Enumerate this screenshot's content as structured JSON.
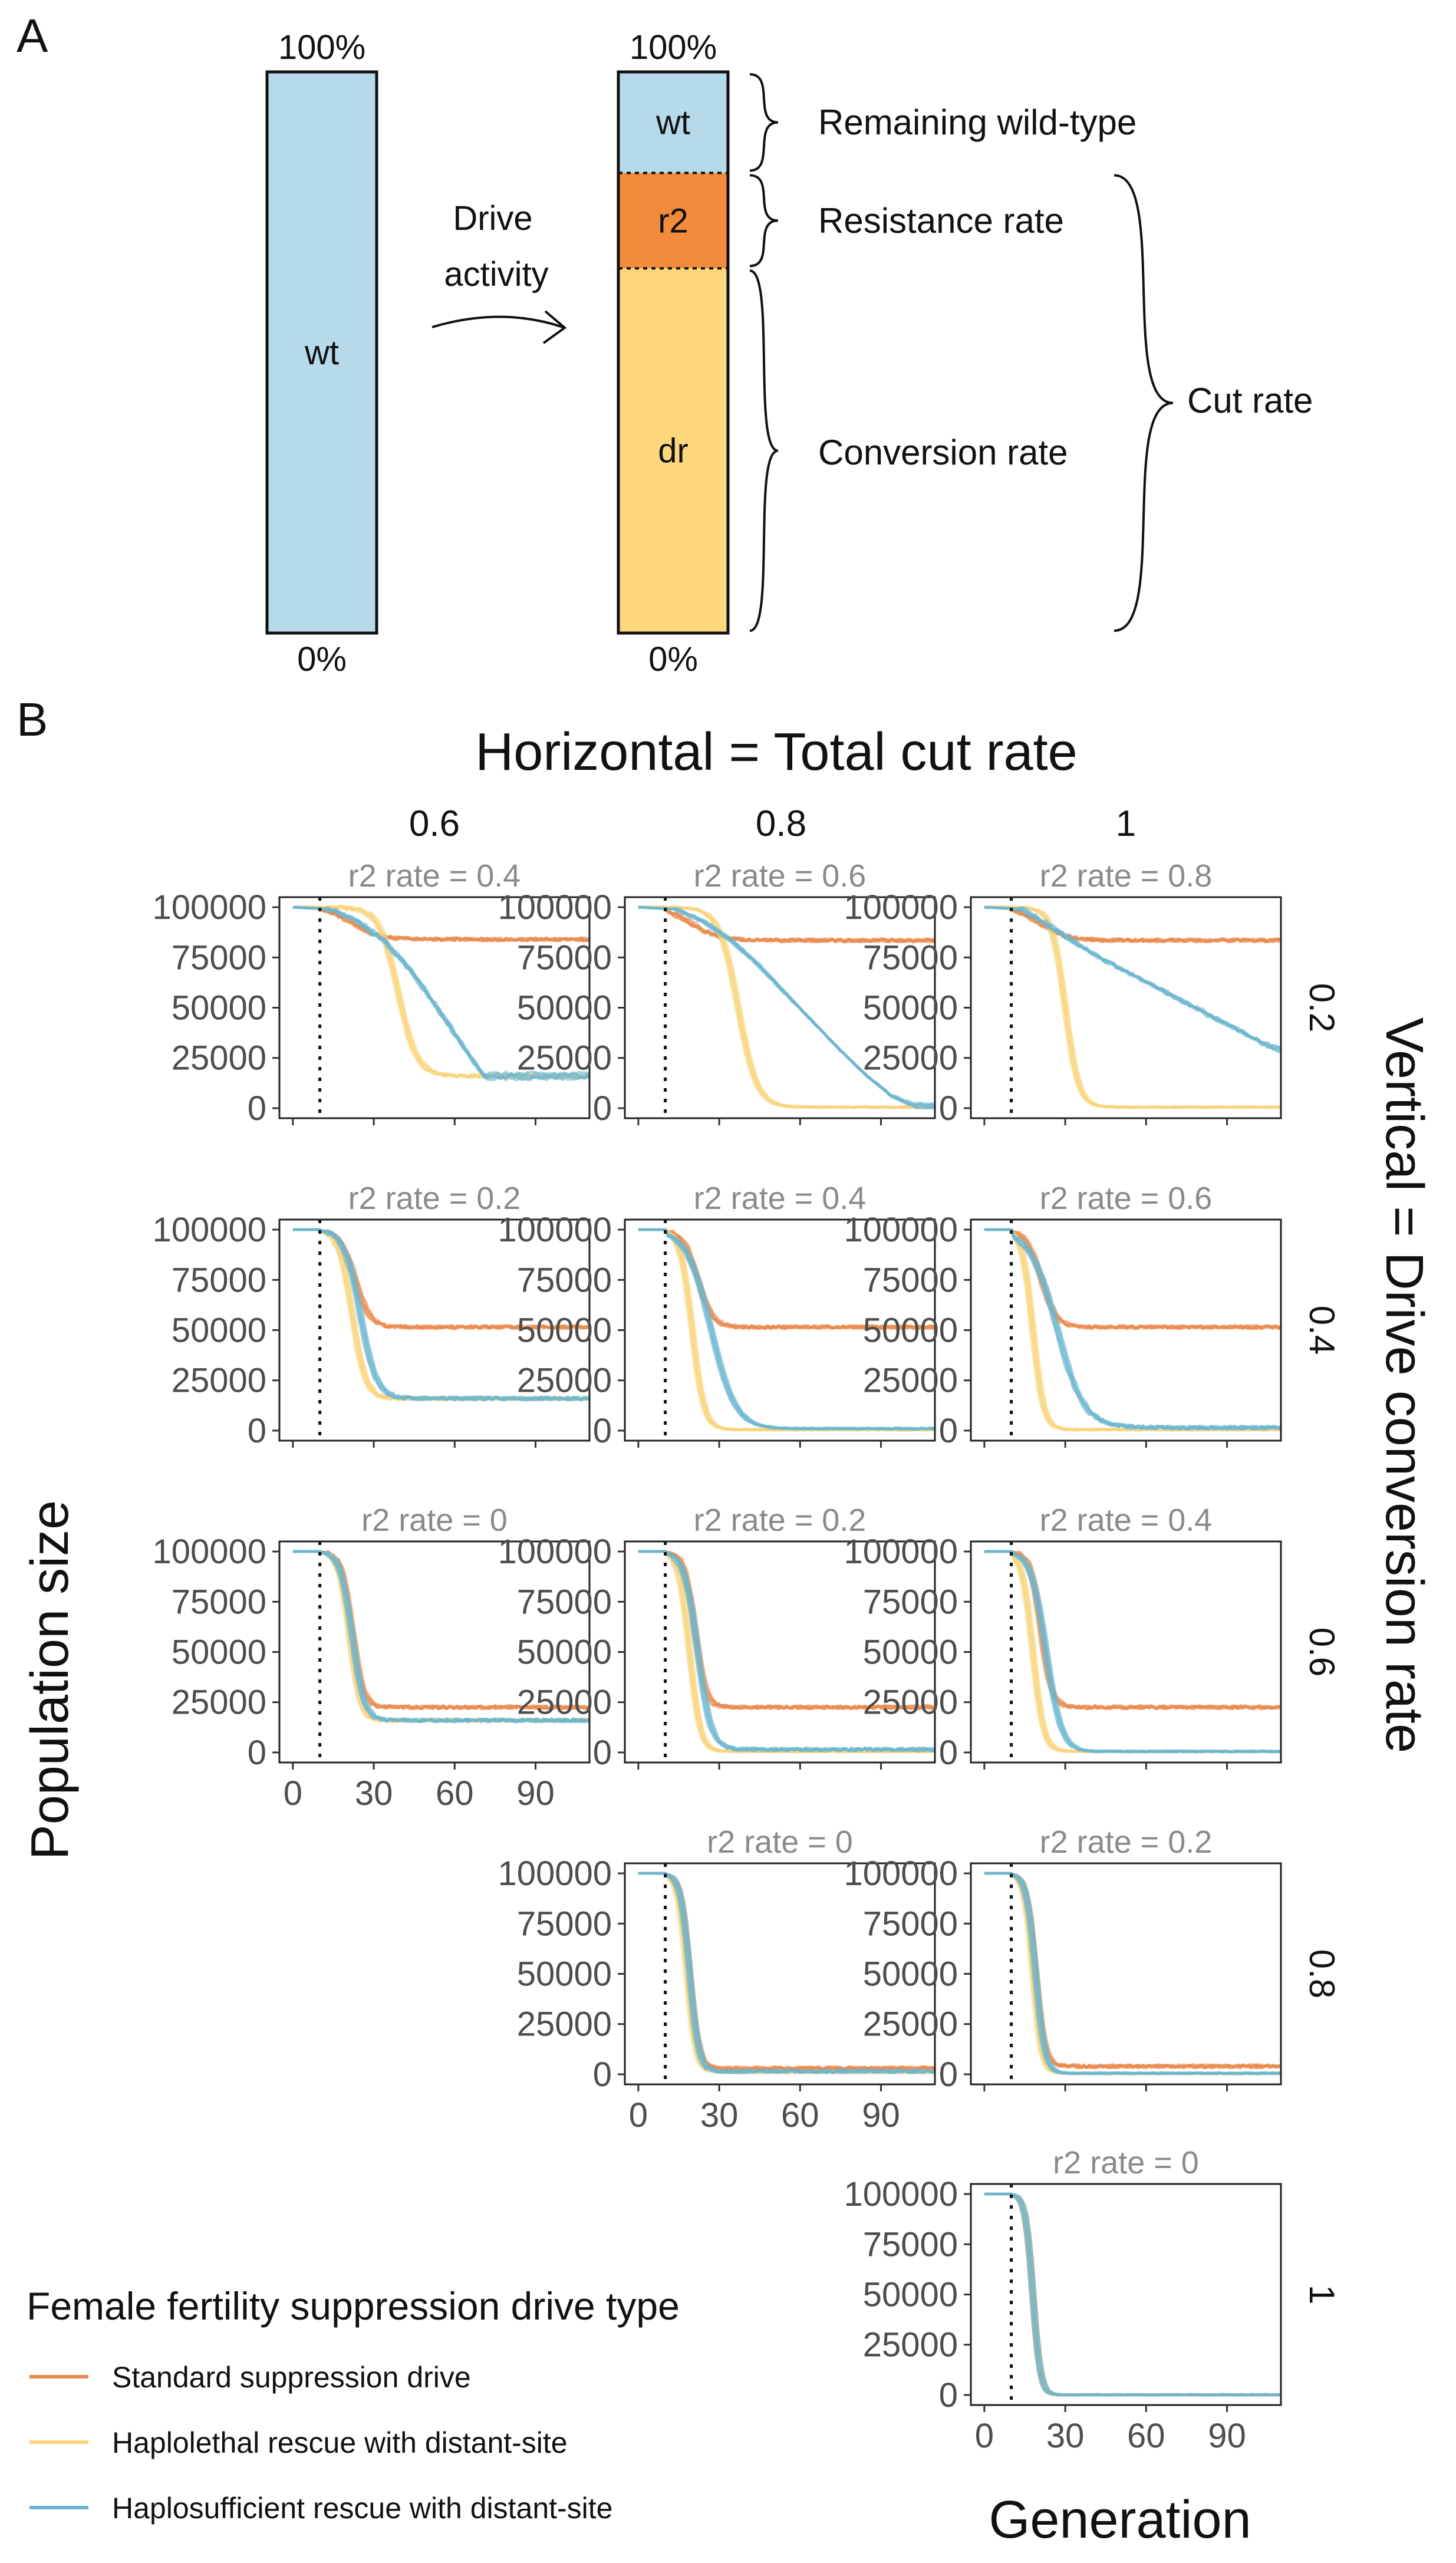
{
  "panel_a": {
    "label": "A",
    "bar1": {
      "top_label": "100%",
      "bottom_label": "0%",
      "segment_label": "wt",
      "color": "#b7daeb"
    },
    "arrow_label_line1": "Drive",
    "arrow_label_line2": "activity",
    "bar2": {
      "top_label": "100%",
      "bottom_label": "0%",
      "segments": [
        {
          "label": "wt",
          "fraction": 0.18,
          "color": "#b7daeb"
        },
        {
          "label": "r2",
          "fraction": 0.17,
          "color": "#f28c3c"
        },
        {
          "label": "dr",
          "fraction": 0.65,
          "color": "#fed77d"
        }
      ]
    },
    "brace_labels": {
      "remaining": "Remaining wild-type",
      "resistance": "Resistance rate",
      "conversion": "Conversion rate",
      "cut": "Cut rate"
    }
  },
  "panel_b": {
    "label": "B",
    "top_title": "Horizontal = Total cut rate",
    "right_title": "Vertical = Drive conversion rate",
    "y_axis_title": "Population size",
    "x_axis_title": "Generation",
    "legend_title": "Female fertility suppression drive type"
  },
  "chart_data": {
    "type": "line",
    "x_ticks": [
      0,
      30,
      60,
      90
    ],
    "y_ticks": [
      0,
      25000,
      50000,
      75000,
      100000
    ],
    "y_tick_labels": [
      "0",
      "25000",
      "50000",
      "75000",
      "100000"
    ],
    "xlim": [
      -5,
      110
    ],
    "ylim": [
      -5000,
      105000
    ],
    "release_generation": 10,
    "column_labels": [
      "0.6",
      "0.8",
      "1"
    ],
    "row_labels": [
      "0.2",
      "0.4",
      "0.6",
      "0.8",
      "1"
    ],
    "series": [
      {
        "name": "Standard suppression drive",
        "color": "#e98a4c"
      },
      {
        "name": "Haplolethal rescue with distant-site",
        "color": "#f9d37a"
      },
      {
        "name": "Haplosufficient rescue with distant-site",
        "color": "#6ab6cf"
      }
    ],
    "panels": [
      {
        "row": 0,
        "col": 0,
        "title": "r2 rate = 0.4",
        "x_axis": false,
        "standard": {
          "midpoint": 22,
          "width": 5,
          "final": 84000
        },
        "haplolethal": {
          "midpoint": 39,
          "width": 3.5,
          "final": 16000
        },
        "haplosufficient": {
          "final": 16000,
          "points": [
            [
              0,
              100000
            ],
            [
              14,
              99000
            ],
            [
              24,
              93000
            ],
            [
              34,
              83000
            ],
            [
              44,
              68000
            ],
            [
              54,
              49000
            ],
            [
              64,
              29000
            ],
            [
              71,
              16000
            ],
            [
              110,
              16000
            ]
          ]
        }
      },
      {
        "row": 0,
        "col": 1,
        "title": "r2 rate = 0.6",
        "x_axis": false,
        "standard": {
          "midpoint": 20,
          "width": 5,
          "final": 83500
        },
        "haplolethal": {
          "midpoint": 37,
          "width": 3.5,
          "final": 500
        },
        "haplosufficient": {
          "final": 1000,
          "points": [
            [
              0,
              100000
            ],
            [
              14,
              99000
            ],
            [
              24,
              93000
            ],
            [
              34,
              84000
            ],
            [
              44,
              72000
            ],
            [
              54,
              58000
            ],
            [
              64,
              44000
            ],
            [
              74,
              30000
            ],
            [
              84,
              17000
            ],
            [
              94,
              6000
            ],
            [
              102,
              1500
            ],
            [
              110,
              1000
            ]
          ]
        }
      },
      {
        "row": 0,
        "col": 2,
        "title": "r2 rate = 0.8",
        "x_axis": false,
        "standard": {
          "midpoint": 21,
          "width": 5,
          "final": 83500
        },
        "haplolethal": {
          "midpoint": 30,
          "width": 2.5,
          "final": 500
        },
        "haplosufficient": {
          "final": 29000,
          "points": [
            [
              0,
              100000
            ],
            [
              14,
              99000
            ],
            [
              24,
              91000
            ],
            [
              34,
              82000
            ],
            [
              44,
              74000
            ],
            [
              54,
              67000
            ],
            [
              64,
              60000
            ],
            [
              74,
              53000
            ],
            [
              84,
              46000
            ],
            [
              94,
              39000
            ],
            [
              104,
              32000
            ],
            [
              110,
              29000
            ]
          ]
        }
      },
      {
        "row": 1,
        "col": 0,
        "title": "r2 rate = 0.2",
        "x_axis": false,
        "standard": {
          "midpoint": 23,
          "width": 2.8,
          "final": 51500
        },
        "haplolethal": {
          "midpoint": 22,
          "width": 2.5,
          "final": 16000
        },
        "haplosufficient": {
          "midpoint": 25,
          "width": 3,
          "final": 16000
        }
      },
      {
        "row": 1,
        "col": 1,
        "title": "r2 rate = 0.4",
        "x_axis": false,
        "standard": {
          "midpoint": 22,
          "width": 2.8,
          "final": 51500
        },
        "haplolethal": {
          "midpoint": 20,
          "width": 2.2,
          "final": 500
        },
        "haplosufficient": {
          "midpoint": 27,
          "width": 4.5,
          "final": 1000
        }
      },
      {
        "row": 1,
        "col": 2,
        "title": "r2 rate = 0.6",
        "x_axis": false,
        "standard": {
          "midpoint": 21,
          "width": 2.8,
          "final": 51500
        },
        "haplolethal": {
          "midpoint": 18,
          "width": 2,
          "final": 500
        },
        "haplosufficient": {
          "midpoint": 27,
          "width": 5,
          "final": 1500
        }
      },
      {
        "row": 2,
        "col": 0,
        "title": "r2 rate = 0",
        "x_axis": true,
        "standard": {
          "midpoint": 22,
          "width": 2,
          "final": 22500
        },
        "haplolethal": {
          "midpoint": 21,
          "width": 2,
          "final": 16000
        },
        "haplosufficient": {
          "midpoint": 22,
          "width": 2.2,
          "final": 16000
        }
      },
      {
        "row": 2,
        "col": 1,
        "title": "r2 rate = 0.2",
        "x_axis": false,
        "standard": {
          "midpoint": 21,
          "width": 2,
          "final": 22500
        },
        "haplolethal": {
          "midpoint": 19,
          "width": 2,
          "final": 500
        },
        "haplosufficient": {
          "midpoint": 22,
          "width": 2.5,
          "final": 1500
        }
      },
      {
        "row": 2,
        "col": 2,
        "title": "r2 rate = 0.4",
        "x_axis": false,
        "standard": {
          "midpoint": 21,
          "width": 2,
          "final": 22500
        },
        "haplolethal": {
          "midpoint": 18,
          "width": 2,
          "final": 500
        },
        "haplosufficient": {
          "midpoint": 23,
          "width": 2.8,
          "final": 500
        }
      },
      {
        "row": 3,
        "col": 1,
        "title": "r2 rate = 0",
        "x_axis": true,
        "standard": {
          "midpoint": 19,
          "width": 1.7,
          "final": 3000
        },
        "haplolethal": {
          "midpoint": 18,
          "width": 1.7,
          "final": 1000
        },
        "haplosufficient": {
          "midpoint": 19,
          "width": 1.7,
          "final": 1500
        }
      },
      {
        "row": 3,
        "col": 2,
        "title": "r2 rate = 0.2",
        "x_axis": false,
        "standard": {
          "midpoint": 19,
          "width": 1.7,
          "final": 4000
        },
        "haplolethal": {
          "midpoint": 18,
          "width": 1.6,
          "final": 500
        },
        "haplosufficient": {
          "midpoint": 19,
          "width": 1.7,
          "final": 500
        }
      },
      {
        "row": 4,
        "col": 2,
        "title": "r2 rate = 0",
        "x_axis": true,
        "standard": {
          "midpoint": 18,
          "width": 1.4,
          "final": 0
        },
        "haplolethal": {
          "midpoint": 18,
          "width": 1.4,
          "final": 0
        },
        "haplosufficient": {
          "midpoint": 18,
          "width": 1.4,
          "final": 0
        }
      }
    ]
  }
}
